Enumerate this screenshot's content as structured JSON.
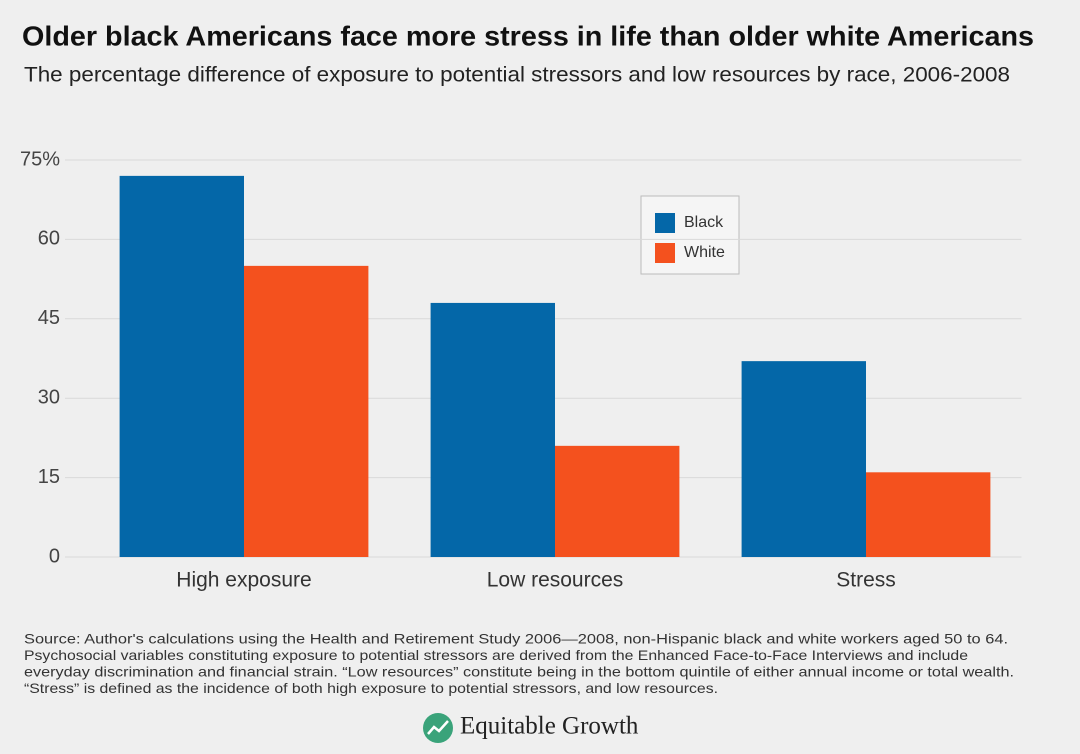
{
  "chart_data": {
    "type": "bar",
    "title": "Older black Americans face more stress in life than older white Americans",
    "subtitle": "The percentage difference of exposure to potential stressors and low resources by race, 2006-2008",
    "categories": [
      "High exposure",
      "Low resources",
      "Stress"
    ],
    "series": [
      {
        "name": "Black",
        "color": "#0467a8",
        "values": [
          72,
          48,
          37
        ]
      },
      {
        "name": "White",
        "color": "#f4511e",
        "values": [
          55,
          21,
          16
        ]
      }
    ],
    "ylim": [
      0,
      75
    ],
    "yticks": [
      0,
      15,
      30,
      45,
      60,
      {
        "value": 75,
        "label": "75%"
      }
    ],
    "grid": true,
    "legend": "top-right",
    "source": [
      "Source: Author's calculations using the Health and Retirement Study 2006—2008, non-Hispanic black and white workers aged 50 to 64.",
      "Psychosocial variables constituting exposure to potential stressors are derived from the Enhanced Face-to-Face Interviews and include",
      "everyday discrimination and financial strain. “Low resources” constitute being in the bottom quintile of either annual income or total wealth.",
      "“Stress” is defined as the incidence of both high exposure to potential stressors, and low resources."
    ],
    "brand": "Equitable Growth"
  }
}
